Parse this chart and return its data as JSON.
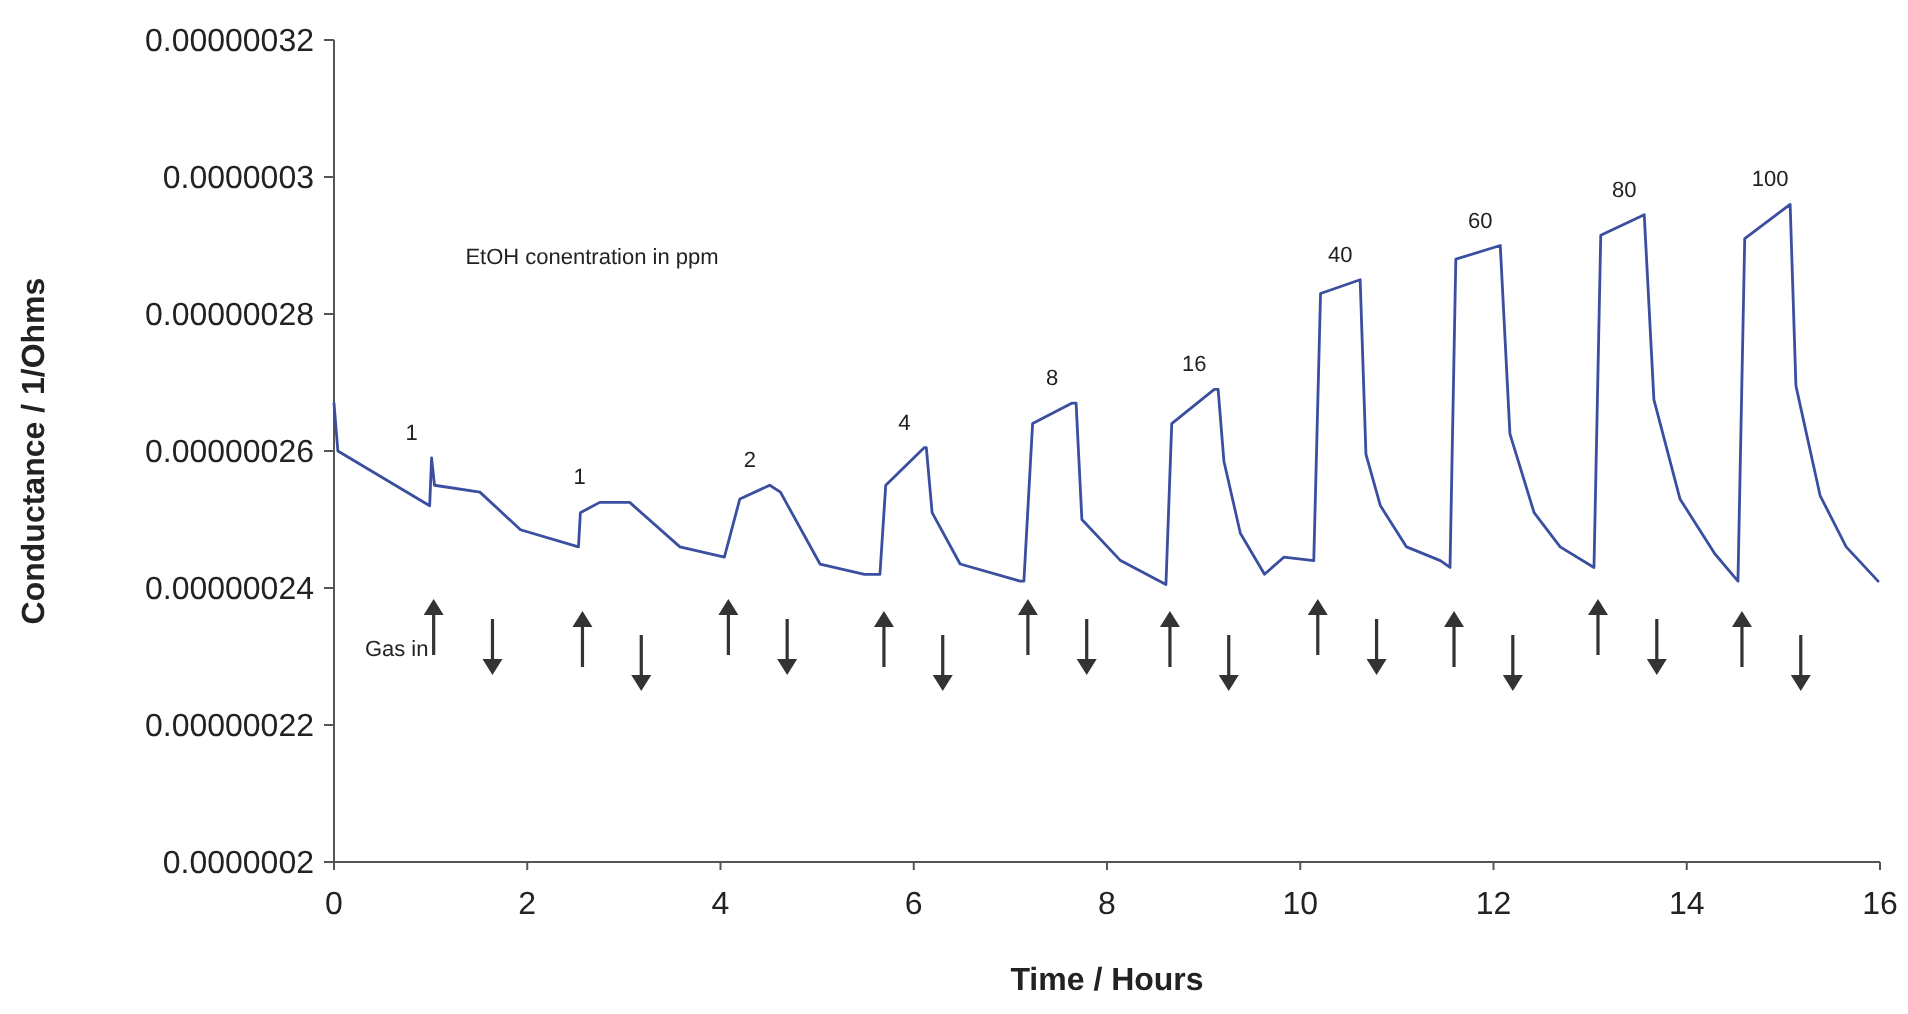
{
  "chart_data": {
    "type": "line",
    "xlabel": "Time / Hours",
    "ylabel": "Conductance / 1/Ohms",
    "x": [
      0,
      0.04,
      0.99,
      1.01,
      1.04,
      1.51,
      1.93,
      2.53,
      2.55,
      2.75,
      3.06,
      3.58,
      4.04,
      4.2,
      4.51,
      4.62,
      5.03,
      5.49,
      5.65,
      5.71,
      6.11,
      6.13,
      6.19,
      6.48,
      7.1,
      7.14,
      7.23,
      7.64,
      7.68,
      7.74,
      8.14,
      8.61,
      8.67,
      9.11,
      9.15,
      9.21,
      9.38,
      9.63,
      9.83,
      10.14,
      10.21,
      10.62,
      10.68,
      10.83,
      11.1,
      11.45,
      11.55,
      11.61,
      12.07,
      12.17,
      12.42,
      12.69,
      13.04,
      13.11,
      13.56,
      13.66,
      13.93,
      14.29,
      14.53,
      14.6,
      15.07,
      15.13,
      15.38,
      15.65,
      15.98
    ],
    "series": [
      {
        "color": "#3a4fa0",
        "values": [
          2.67e-07,
          2.6e-07,
          2.52e-07,
          2.59e-07,
          2.55e-07,
          2.54e-07,
          2.485e-07,
          2.46e-07,
          2.51e-07,
          2.525e-07,
          2.525e-07,
          2.46e-07,
          2.445e-07,
          2.53e-07,
          2.55e-07,
          2.54e-07,
          2.435e-07,
          2.42e-07,
          2.42e-07,
          2.55e-07,
          2.605e-07,
          2.605e-07,
          2.51e-07,
          2.435e-07,
          2.41e-07,
          2.41e-07,
          2.64e-07,
          2.67e-07,
          2.67e-07,
          2.5e-07,
          2.44e-07,
          2.405e-07,
          2.64e-07,
          2.69e-07,
          2.69e-07,
          2.585e-07,
          2.48e-07,
          2.42e-07,
          2.445e-07,
          2.44e-07,
          2.83e-07,
          2.85e-07,
          2.595e-07,
          2.52e-07,
          2.46e-07,
          2.44e-07,
          2.43e-07,
          2.88e-07,
          2.9e-07,
          2.625e-07,
          2.51e-07,
          2.46e-07,
          2.43e-07,
          2.915e-07,
          2.945e-07,
          2.675e-07,
          2.53e-07,
          2.45e-07,
          2.41e-07,
          2.91e-07,
          2.96e-07,
          2.695e-07,
          2.535e-07,
          2.46e-07,
          2.41e-07
        ]
      }
    ],
    "xlim": [
      0,
      16
    ],
    "xticks": [
      0,
      2,
      4,
      6,
      8,
      10,
      12,
      14,
      16
    ],
    "ylim": [
      2e-07,
      3.2e-07
    ],
    "yticks": [
      {
        "value": 2e-07,
        "label": "0.0000002"
      },
      {
        "value": 2.2e-07,
        "label": "0.00000022"
      },
      {
        "value": 2.4e-07,
        "label": "0.00000024"
      },
      {
        "value": 2.6e-07,
        "label": "0.00000026"
      },
      {
        "value": 2.8e-07,
        "label": "0.00000028"
      },
      {
        "value": 3e-07,
        "label": "0.0000003"
      },
      {
        "value": 3.2e-07,
        "label": "0.00000032"
      }
    ],
    "grid": false,
    "marker": "none",
    "line_style": "solid",
    "annotations": [
      "EtOH conentration in ppm",
      "Gas in",
      {
        "text": "1",
        "x": 1.01,
        "y": 2.59e-07
      },
      {
        "text": "1",
        "x": 2.75,
        "y": 2.525e-07
      },
      {
        "text": "2",
        "x": 4.51,
        "y": 2.55e-07
      },
      {
        "text": "4",
        "x": 6.11,
        "y": 2.605e-07
      },
      {
        "text": "8",
        "x": 7.64,
        "y": 2.67e-07
      },
      {
        "text": "16",
        "x": 9.11,
        "y": 2.69e-07
      },
      {
        "text": "40",
        "x": 10.62,
        "y": 2.85e-07
      },
      {
        "text": "60",
        "x": 12.07,
        "y": 2.9e-07
      },
      {
        "text": "80",
        "x": 13.56,
        "y": 2.945e-07
      },
      {
        "text": "100",
        "x": 15.07,
        "y": 2.96e-07
      }
    ]
  }
}
